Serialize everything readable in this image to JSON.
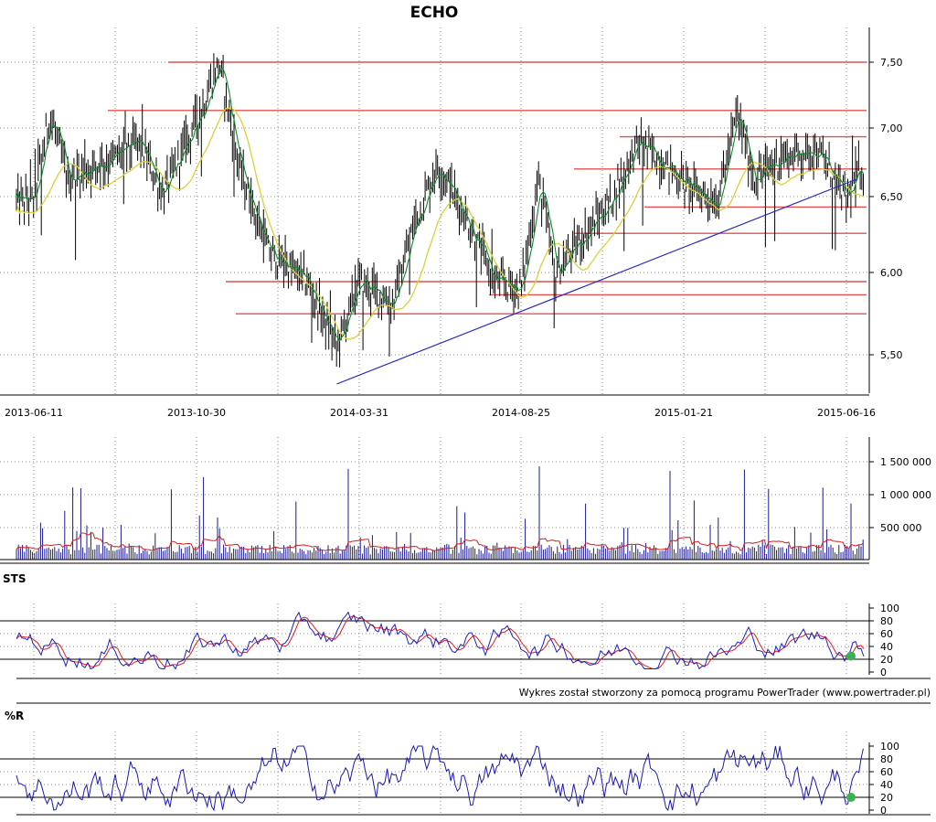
{
  "title": "ECHO",
  "credit": "Wykres został stworzony za pomocą programu PowerTrader (www.powertrader.pl)",
  "colors": {
    "candle": "#000000",
    "fast_ma": "#0a8a2a",
    "slow_ma": "#d8d23a",
    "resistance": "#e05050",
    "trendline": "#2a2ac0",
    "volume_bar": "#1a1a8c",
    "volume_ma": "#d02020",
    "sts_k": "#2020c0",
    "sts_d": "#e02020",
    "williams": "#1a1ab0",
    "marker": "#3cb050",
    "grid": "#8a8a8a"
  },
  "chart_data": [
    {
      "type": "candlestick",
      "title": "ECHO",
      "x_tick_labels": [
        "2013-06-11",
        "2013-10-30",
        "2014-03-31",
        "2014-08-25",
        "2015-01-21",
        "2015-06-16"
      ],
      "y_tick_labels": [
        "7,50",
        "7,00",
        "6,50",
        "6,00",
        "5,50"
      ],
      "ylim": [
        5.3,
        7.65
      ],
      "grid": true,
      "price_path": [
        {
          "date": "2013-06-11",
          "close": 6.55
        },
        {
          "date": "2013-06-25",
          "close": 7.15
        },
        {
          "date": "2013-07-10",
          "close": 6.7
        },
        {
          "date": "2013-08-20",
          "close": 6.85
        },
        {
          "date": "2013-09-10",
          "close": 6.95
        },
        {
          "date": "2013-10-01",
          "close": 6.6
        },
        {
          "date": "2013-10-30",
          "close": 7.1
        },
        {
          "date": "2013-11-20",
          "close": 7.5
        },
        {
          "date": "2013-12-10",
          "close": 6.75
        },
        {
          "date": "2014-01-05",
          "close": 6.2
        },
        {
          "date": "2014-02-10",
          "close": 6.0
        },
        {
          "date": "2014-03-10",
          "close": 5.55
        },
        {
          "date": "2014-03-31",
          "close": 6.0
        },
        {
          "date": "2014-05-01",
          "close": 5.85
        },
        {
          "date": "2014-05-20",
          "close": 6.4
        },
        {
          "date": "2014-06-10",
          "close": 6.8
        },
        {
          "date": "2014-07-05",
          "close": 6.45
        },
        {
          "date": "2014-08-01",
          "close": 6.0
        },
        {
          "date": "2014-08-25",
          "close": 5.95
        },
        {
          "date": "2014-09-10",
          "close": 6.7
        },
        {
          "date": "2014-09-25",
          "close": 6.05
        },
        {
          "date": "2014-10-20",
          "close": 6.3
        },
        {
          "date": "2014-11-15",
          "close": 6.55
        },
        {
          "date": "2014-12-10",
          "close": 6.95
        },
        {
          "date": "2015-01-05",
          "close": 6.8
        },
        {
          "date": "2015-01-25",
          "close": 6.65
        },
        {
          "date": "2015-02-20",
          "close": 6.55
        },
        {
          "date": "2015-03-10",
          "close": 7.15
        },
        {
          "date": "2015-03-25",
          "close": 6.7
        },
        {
          "date": "2015-04-20",
          "close": 6.85
        },
        {
          "date": "2015-05-20",
          "close": 6.9
        },
        {
          "date": "2015-06-01",
          "close": 6.75
        },
        {
          "date": "2015-06-16",
          "close": 6.55
        },
        {
          "date": "2015-06-25",
          "close": 6.75
        }
      ],
      "horizontal_levels": [
        7.5,
        7.17,
        6.99,
        6.77,
        6.51,
        6.33,
        6.0,
        5.91,
        5.78
      ],
      "trendline": {
        "from": {
          "date": "2014-03-10",
          "price": 5.3
        },
        "to": {
          "date": "2015-06-25",
          "price": 6.7
        }
      }
    },
    {
      "type": "bar",
      "series": "volume",
      "y_tick_labels": [
        "1 500 000",
        "1 000 000",
        "500 000"
      ],
      "ylim": [
        0,
        1900000
      ]
    },
    {
      "type": "line",
      "title": "STS",
      "y_tick_labels": [
        "100",
        "80",
        "60",
        "40",
        "20",
        "0"
      ],
      "ylim": [
        0,
        100
      ],
      "reference_lines": [
        80,
        20
      ],
      "last_value": 25
    },
    {
      "type": "line",
      "title": "%R",
      "y_tick_labels": [
        "100",
        "80",
        "60",
        "40",
        "20",
        "0"
      ],
      "ylim": [
        0,
        100
      ],
      "reference_lines": [
        80,
        20
      ],
      "last_value": 20
    }
  ]
}
